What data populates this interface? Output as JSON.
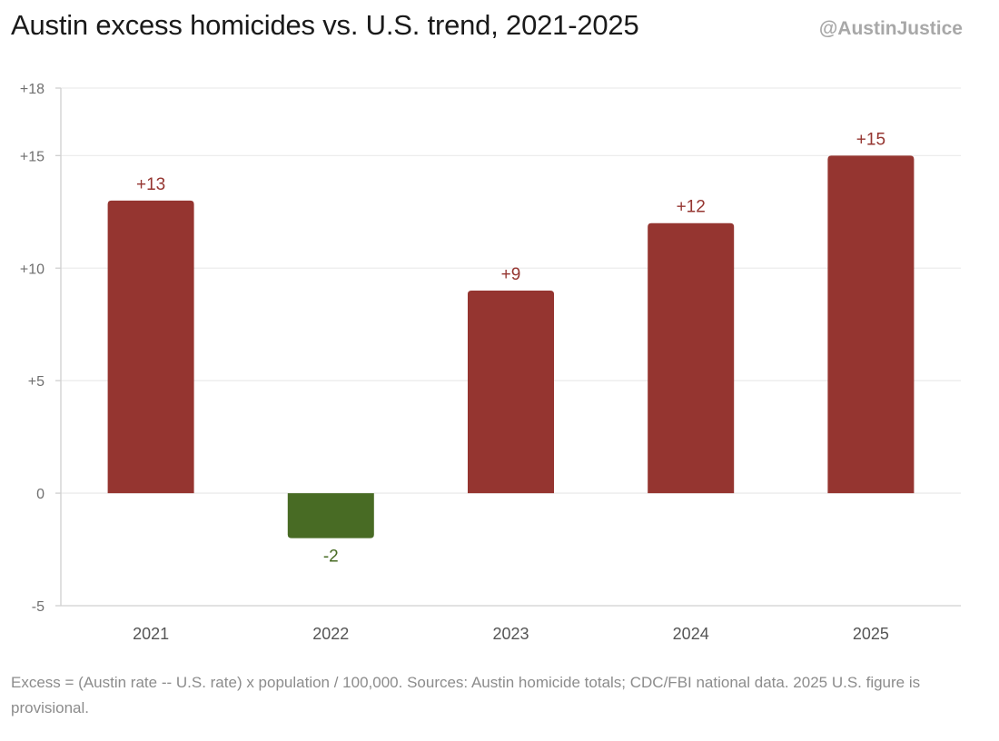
{
  "header": {
    "title": "Austin excess homicides vs. U.S. trend, 2021-2025",
    "handle": "@AustinJustice"
  },
  "footnote": "Excess = (Austin rate -- U.S. rate) x population / 100,000. Sources: Austin homicide totals; CDC/FBI national data. 2025 U.S. figure is provisional.",
  "colors": {
    "positive": "#953530",
    "negative": "#486b24",
    "grid": "#ececec",
    "axis": "#d0d0d0"
  },
  "chart_data": {
    "type": "bar",
    "title": "Austin excess homicides vs. U.S. trend, 2021-2025",
    "categories": [
      "2021",
      "2022",
      "2023",
      "2024",
      "2025"
    ],
    "values": [
      13,
      -2,
      9,
      12,
      15
    ],
    "value_labels": [
      "+13",
      "-2",
      "+9",
      "+12",
      "+15"
    ],
    "ylim": [
      -5,
      18
    ],
    "yticks": [
      -5,
      0,
      5,
      10,
      15,
      18
    ],
    "ytick_labels": [
      "-5",
      "0",
      "+5",
      "+10",
      "+15",
      "+18"
    ],
    "xlabel": "",
    "ylabel": "",
    "grid": true,
    "legend": "none"
  }
}
